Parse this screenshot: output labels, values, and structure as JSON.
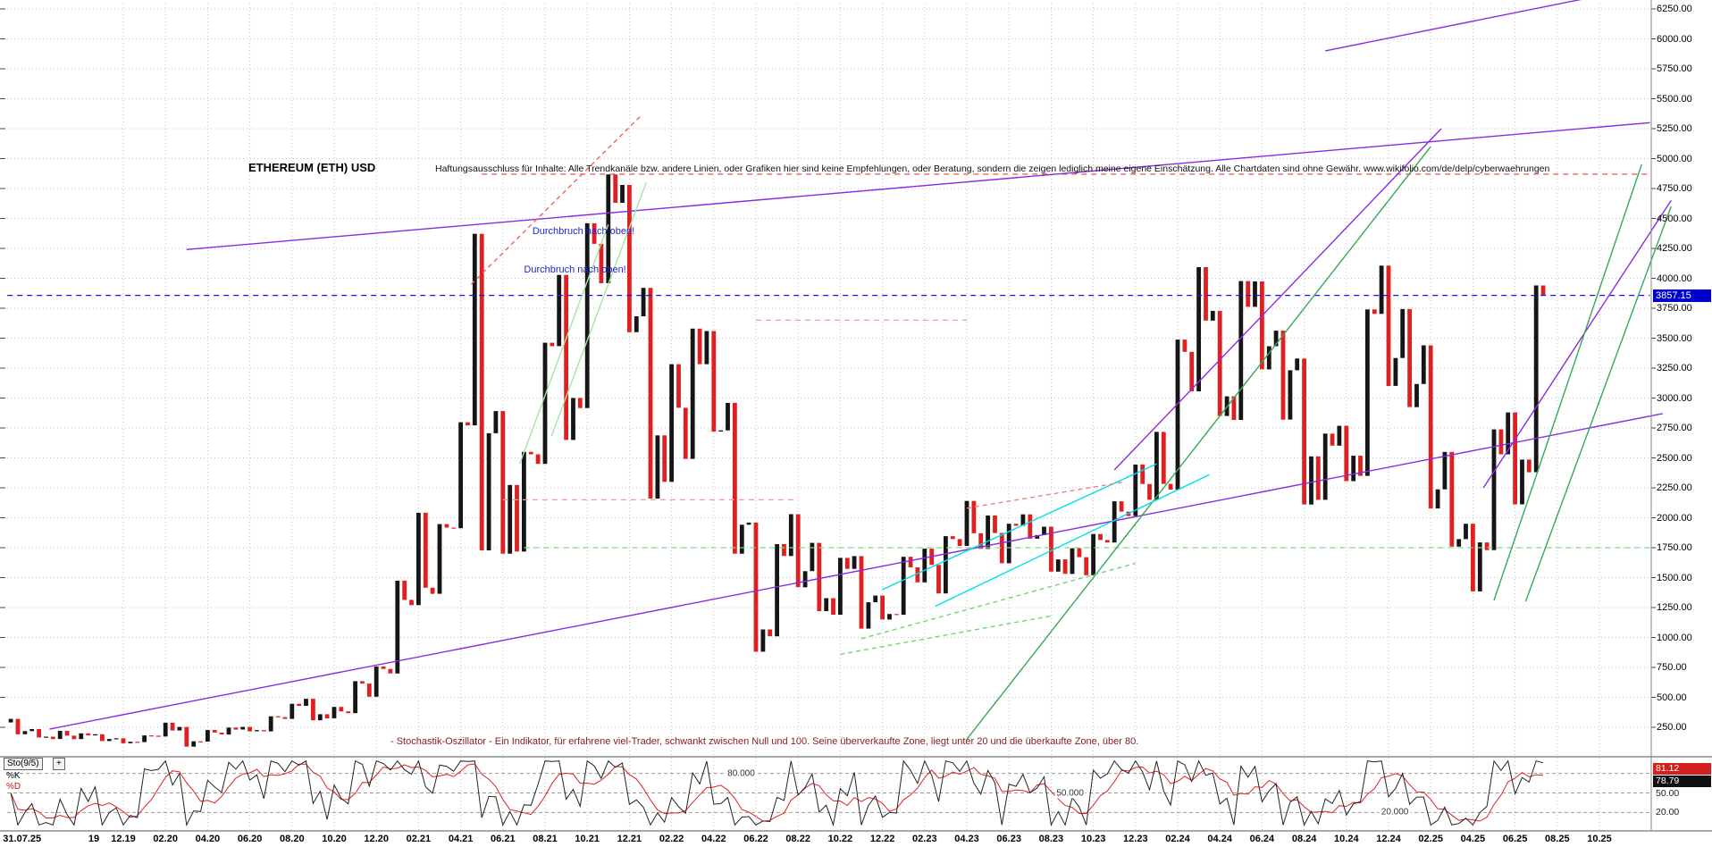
{
  "header": {
    "title": "ETHEREUM (ETH) USD",
    "disclaimer": "Haftungsausschluss für Inhalte: Alle Trendkanäle bzw. andere Linien, oder Grafiken hier sind keine Empfehlungen, oder Beratung, sondern die zeigen lediglich meine eigene Einschätzung. Alle Chartdaten sind ohne Gewähr. www.wikifolio.com/de/delp/cyberwaehrungen"
  },
  "price_axis": {
    "current": "3857.15",
    "ticks": [
      [
        6250,
        "6250.00"
      ],
      [
        6000,
        "6000.00"
      ],
      [
        5750,
        "5750.00"
      ],
      [
        5500,
        "5500.00"
      ],
      [
        5250,
        "5250.00"
      ],
      [
        5000,
        "5000.00"
      ],
      [
        4750,
        "4750.00"
      ],
      [
        4500,
        "4500.00"
      ],
      [
        4250,
        "4250.00"
      ],
      [
        4000,
        "4000.00"
      ],
      [
        3750,
        "3750.00"
      ],
      [
        3500,
        "3500.00"
      ],
      [
        3250,
        "3250.00"
      ],
      [
        3000,
        "3000.00"
      ],
      [
        2750,
        "2750.00"
      ],
      [
        2500,
        "2500.00"
      ],
      [
        2250,
        "2250.00"
      ],
      [
        2000,
        "2000.00"
      ],
      [
        1750,
        "1750.00"
      ],
      [
        1500,
        "1500.00"
      ],
      [
        1250,
        "1250.00"
      ],
      [
        1000,
        "1000.00"
      ],
      [
        750,
        "750.00"
      ],
      [
        500,
        "500.00"
      ],
      [
        250,
        "250.00"
      ]
    ]
  },
  "x_axis": {
    "labels": [
      [
        "31.07.25",
        0.2,
        false
      ],
      [
        "19",
        3.6,
        false
      ],
      [
        "12.19",
        5,
        true
      ],
      [
        "02.20",
        7,
        true
      ],
      [
        "04.20",
        9,
        true
      ],
      [
        "06.20",
        11,
        true
      ],
      [
        "08.20",
        13,
        true
      ],
      [
        "10.20",
        15,
        true
      ],
      [
        "12.20",
        17,
        true
      ],
      [
        "02.21",
        19,
        true
      ],
      [
        "04.21",
        21,
        true
      ],
      [
        "06.21",
        23,
        true
      ],
      [
        "08.21",
        25,
        true
      ],
      [
        "10.21",
        27,
        true
      ],
      [
        "12.21",
        29,
        true
      ],
      [
        "02.22",
        31,
        true
      ],
      [
        "04.22",
        33,
        true
      ],
      [
        "06.22",
        35,
        true
      ],
      [
        "08.22",
        37,
        true
      ],
      [
        "10.22",
        39,
        true
      ],
      [
        "12.22",
        41,
        true
      ],
      [
        "02.23",
        43,
        true
      ],
      [
        "04.23",
        45,
        true
      ],
      [
        "06.23",
        47,
        true
      ],
      [
        "08.23",
        49,
        true
      ],
      [
        "10.23",
        51,
        true
      ],
      [
        "12.23",
        53,
        true
      ],
      [
        "02.24",
        55,
        true
      ],
      [
        "04.24",
        57,
        true
      ],
      [
        "06.24",
        59,
        true
      ],
      [
        "08.24",
        61,
        true
      ],
      [
        "10.24",
        63,
        true
      ],
      [
        "12.24",
        65,
        true
      ],
      [
        "02.25",
        67,
        true
      ],
      [
        "04.25",
        69,
        true
      ],
      [
        "06.25",
        71,
        true
      ],
      [
        "08.25",
        73,
        true
      ],
      [
        "10.25",
        75,
        true
      ]
    ]
  },
  "annotations": [
    {
      "text": "Durchbruch nach oben!",
      "m": 24.4,
      "p": 4390
    },
    {
      "text": "Durchbruch nach oben!",
      "m": 24.0,
      "p": 4070
    }
  ],
  "oscillator": {
    "name": "Sto(9/5)",
    "plus_label": "+",
    "k_label": "%K",
    "d_label": "%D",
    "d_value": "81.12",
    "k_value": "78.79",
    "scale_labels": [
      "50.00",
      "20.00"
    ],
    "levels": [
      {
        "v": 80,
        "label": "80.000",
        "m": 34.3
      },
      {
        "v": 50,
        "label": "50.000",
        "m": 49.9
      },
      {
        "v": 20,
        "label": "20.000",
        "m": 65.3
      }
    ],
    "note": "- Stochastik-Oszillator - Ein Indikator, für erfahrene viel-Trader, schwankt zwischen Null und 100. Seine überverkaufte Zone, liegt unter 20 und die überkaufte Zone, über 80."
  },
  "chart_data": {
    "type": "candlestick",
    "title": "ETHEREUM (ETH) USD",
    "x_unit": "month",
    "ylim": [
      250,
      6250
    ],
    "columns": [
      "date",
      "open",
      "high",
      "low",
      "close"
    ],
    "candles": [
      [
        "07.19",
        290,
        320,
        192,
        218
      ],
      [
        "08.19",
        218,
        235,
        165,
        172
      ],
      [
        "09.19",
        172,
        220,
        152,
        180
      ],
      [
        "10.19",
        180,
        199,
        151,
        182
      ],
      [
        "11.19",
        182,
        192,
        135,
        152
      ],
      [
        "12.19",
        152,
        158,
        116,
        129
      ],
      [
        "01.20",
        129,
        182,
        126,
        180
      ],
      [
        "02.20",
        180,
        288,
        173,
        223
      ],
      [
        "03.20",
        223,
        253,
        88,
        133
      ],
      [
        "04.20",
        133,
        227,
        131,
        206
      ],
      [
        "05.20",
        206,
        248,
        190,
        231
      ],
      [
        "06.20",
        231,
        253,
        216,
        226
      ],
      [
        "07.20",
        226,
        342,
        216,
        335
      ],
      [
        "08.20",
        335,
        446,
        320,
        429
      ],
      [
        "09.20",
        429,
        488,
        308,
        359
      ],
      [
        "10.20",
        359,
        420,
        325,
        383
      ],
      [
        "11.20",
        383,
        635,
        368,
        615
      ],
      [
        "12.20",
        615,
        758,
        505,
        737
      ],
      [
        "01.21",
        737,
        1475,
        700,
        1314
      ],
      [
        "02.21",
        1314,
        2042,
        1270,
        1416
      ],
      [
        "03.21",
        1416,
        1947,
        1365,
        1918
      ],
      [
        "04.21",
        1918,
        2798,
        1913,
        2772
      ],
      [
        "05.21",
        2772,
        4372,
        1728,
        2706
      ],
      [
        "06.21",
        2706,
        2891,
        1700,
        2274
      ],
      [
        "07.21",
        2274,
        2550,
        1718,
        2530
      ],
      [
        "08.21",
        2530,
        3462,
        2450,
        3433
      ],
      [
        "09.21",
        3433,
        4028,
        2650,
        3001
      ],
      [
        "10.21",
        3001,
        4460,
        2917,
        4288
      ],
      [
        "11.21",
        4288,
        4868,
        3959,
        4631
      ],
      [
        "12.21",
        4631,
        4780,
        3550,
        3683
      ],
      [
        "01.22",
        3683,
        3920,
        2160,
        2688
      ],
      [
        "02.22",
        2688,
        3283,
        2300,
        2919
      ],
      [
        "03.22",
        2919,
        3580,
        2492,
        3283
      ],
      [
        "04.22",
        3283,
        3560,
        2720,
        2730
      ],
      [
        "05.22",
        2730,
        2960,
        1700,
        1942
      ],
      [
        "06.22",
        1942,
        1960,
        881,
        1067
      ],
      [
        "07.22",
        1067,
        1780,
        1010,
        1681
      ],
      [
        "08.22",
        1681,
        2030,
        1420,
        1554
      ],
      [
        "09.22",
        1554,
        1790,
        1220,
        1328
      ],
      [
        "10.22",
        1328,
        1665,
        1190,
        1573
      ],
      [
        "11.22",
        1573,
        1680,
        1074,
        1294
      ],
      [
        "12.22",
        1294,
        1350,
        1150,
        1196
      ],
      [
        "01.23",
        1196,
        1674,
        1190,
        1586
      ],
      [
        "02.23",
        1586,
        1742,
        1461,
        1606
      ],
      [
        "03.23",
        1606,
        1846,
        1368,
        1822
      ],
      [
        "04.23",
        1822,
        2140,
        1765,
        1870
      ],
      [
        "05.23",
        1870,
        2019,
        1740,
        1873
      ],
      [
        "06.23",
        1873,
        1950,
        1620,
        1933
      ],
      [
        "07.23",
        1933,
        2028,
        1825,
        1855
      ],
      [
        "08.23",
        1855,
        1925,
        1550,
        1652
      ],
      [
        "09.23",
        1652,
        1745,
        1531,
        1671
      ],
      [
        "10.23",
        1671,
        1864,
        1520,
        1814
      ],
      [
        "11.23",
        1814,
        2137,
        1793,
        2051
      ],
      [
        "12.23",
        2051,
        2445,
        2015,
        2282
      ],
      [
        "01.24",
        2282,
        2717,
        2150,
        2283
      ],
      [
        "02.24",
        2283,
        3488,
        2235,
        3386
      ],
      [
        "03.24",
        3386,
        4093,
        3056,
        3647
      ],
      [
        "04.24",
        3647,
        3728,
        2850,
        3014
      ],
      [
        "05.24",
        3014,
        3977,
        2817,
        3762
      ],
      [
        "06.24",
        3762,
        3974,
        3240,
        3433
      ],
      [
        "07.24",
        3433,
        3563,
        2820,
        3232
      ],
      [
        "08.24",
        3232,
        3330,
        2111,
        2513
      ],
      [
        "09.24",
        2513,
        2703,
        2150,
        2602
      ],
      [
        "10.24",
        2602,
        2768,
        2306,
        2518
      ],
      [
        "11.24",
        2518,
        3740,
        2350,
        3703
      ],
      [
        "12.24",
        3703,
        4106,
        3101,
        3334
      ],
      [
        "01.25",
        3334,
        3743,
        2924,
        3117
      ],
      [
        "02.25",
        3117,
        3440,
        2077,
        2237
      ],
      [
        "03.25",
        2237,
        2550,
        1759,
        1822
      ],
      [
        "04.25",
        1822,
        1950,
        1385,
        1794
      ],
      [
        "05.25",
        1794,
        2738,
        1730,
        2530
      ],
      [
        "06.25",
        2530,
        2880,
        2112,
        2486
      ],
      [
        "07.25",
        2486,
        3940,
        2380,
        3857.15
      ]
    ],
    "trendlines": [
      {
        "name": "violet-upper-channel",
        "color": "#8a2be2",
        "m1": 8,
        "p1": 4240,
        "m2": 77.4,
        "p2": 5300
      },
      {
        "name": "violet-long-support",
        "color": "#8a2be2",
        "m1": 1.5,
        "p1": 235,
        "m2": 78,
        "p2": 2870
      },
      {
        "name": "violet-steep-2024",
        "color": "#8a2be2",
        "m1": 52,
        "p1": 2400,
        "m2": 67.5,
        "p2": 5250
      },
      {
        "name": "violet-top-right",
        "color": "#8a2be2",
        "m1": 62,
        "p1": 5900,
        "m2": 75,
        "p2": 6360
      },
      {
        "name": "violet-right-rising",
        "color": "#8a2be2",
        "m1": 69.5,
        "p1": 2250,
        "m2": 78.4,
        "p2": 4650
      },
      {
        "name": "green-long-uptrend",
        "color": "#35a957",
        "m1": 45,
        "p1": 150,
        "m2": 67,
        "p2": 5100
      },
      {
        "name": "green-right-channel-1",
        "color": "#35a957",
        "m1": 70,
        "p1": 1310,
        "m2": 77,
        "p2": 4950
      },
      {
        "name": "green-right-channel-2",
        "color": "#35a957",
        "m1": 71.5,
        "p1": 1300,
        "m2": 78.4,
        "p2": 4600
      },
      {
        "name": "lightgreen-2021-trend-1",
        "color": "#a2e8a2",
        "m1": 25.3,
        "p1": 2680,
        "m2": 29.8,
        "p2": 4800
      },
      {
        "name": "lightgreen-2021-trend-2",
        "color": "#a2e8a2",
        "m1": 23.8,
        "p1": 2450,
        "m2": 28,
        "p2": 4450
      },
      {
        "name": "cyan-channel-upper",
        "color": "#00dfe8",
        "m1": 41,
        "p1": 1400,
        "m2": 54,
        "p2": 2450
      },
      {
        "name": "cyan-channel-lower",
        "color": "#00dfe8",
        "m1": 43.5,
        "p1": 1260,
        "m2": 56.5,
        "p2": 2360
      },
      {
        "name": "red-dashed-peak-trend",
        "color": "#f26060",
        "dash": true,
        "m1": 21.5,
        "p1": 3950,
        "m2": 29.5,
        "p2": 5350
      },
      {
        "name": "green-dashed-higherlows-1",
        "color": "#6bd96b",
        "dash": true,
        "m1": 40,
        "p1": 990,
        "m2": 53,
        "p2": 1620
      },
      {
        "name": "green-dashed-higherlows-2",
        "color": "#6bd96b",
        "dash": true,
        "m1": 39,
        "p1": 860,
        "m2": 49,
        "p2": 1180
      },
      {
        "name": "red-dashed-2023-res",
        "color": "#f58080",
        "dash": true,
        "m1": 45,
        "p1": 2080,
        "m2": 52.5,
        "p2": 2300
      }
    ],
    "hlines": [
      {
        "name": "resistance-ath",
        "color": "#f03b3b",
        "dash": true,
        "p": 4870,
        "m1": 22,
        "m2": 77.4
      },
      {
        "name": "support-1750",
        "color": "#79dd79",
        "dash": true,
        "p": 1750,
        "m1": 24,
        "m2": 77.4
      },
      {
        "name": "resistance-2150",
        "color": "#f59a9a",
        "dash": true,
        "p": 2150,
        "m1": 23,
        "m2": 37
      },
      {
        "name": "resistance-3650",
        "color": "#f59a9a",
        "dash": true,
        "p": 3650,
        "m1": 35,
        "m2": 45
      },
      {
        "name": "current-price-line",
        "color": "#1414e8",
        "dash": true,
        "p": 3857.15,
        "m1": -0.5,
        "m2": 77.4
      }
    ]
  }
}
